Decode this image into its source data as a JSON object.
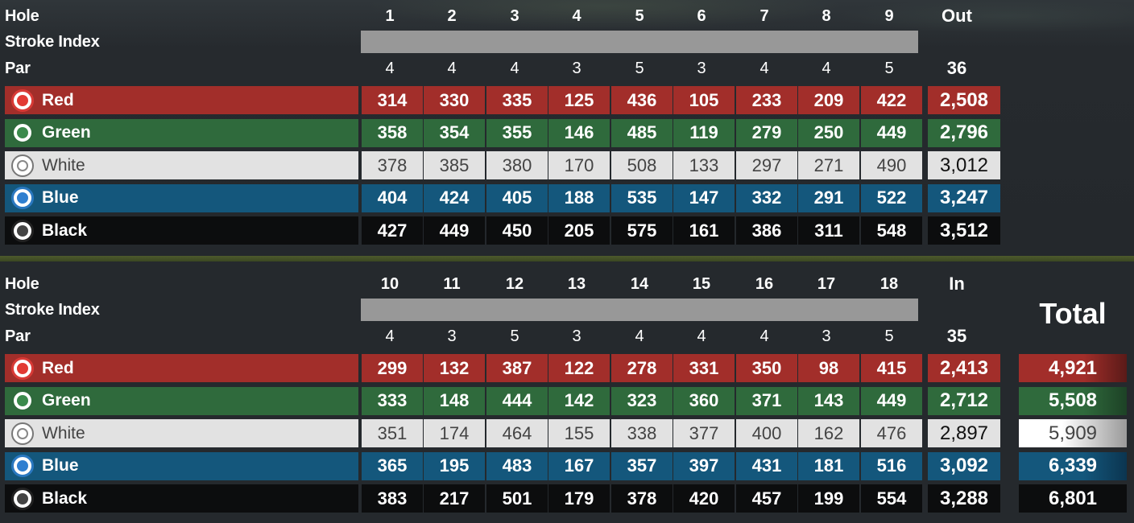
{
  "labels": {
    "hole": "Hole",
    "stroke_index": "Stroke Index",
    "par": "Par",
    "out": "Out",
    "in": "In",
    "total": "Total"
  },
  "front": {
    "holes": [
      "1",
      "2",
      "3",
      "4",
      "5",
      "6",
      "7",
      "8",
      "9"
    ],
    "par": [
      "4",
      "4",
      "4",
      "3",
      "5",
      "3",
      "4",
      "4",
      "5"
    ],
    "par_total": "36"
  },
  "back": {
    "holes": [
      "10",
      "11",
      "12",
      "13",
      "14",
      "15",
      "16",
      "17",
      "18"
    ],
    "par": [
      "4",
      "3",
      "5",
      "3",
      "4",
      "4",
      "4",
      "3",
      "5"
    ],
    "par_total": "35"
  },
  "tees": [
    {
      "key": "red",
      "name": "Red",
      "color": "#a22e2a",
      "front": [
        "314",
        "330",
        "335",
        "125",
        "436",
        "105",
        "233",
        "209",
        "422"
      ],
      "out": "2,508",
      "back": [
        "299",
        "132",
        "387",
        "122",
        "278",
        "331",
        "350",
        "98",
        "415"
      ],
      "in": "2,413",
      "total": "4,921"
    },
    {
      "key": "green",
      "name": "Green",
      "color": "#2f6a3c",
      "front": [
        "358",
        "354",
        "355",
        "146",
        "485",
        "119",
        "279",
        "250",
        "449"
      ],
      "out": "2,796",
      "back": [
        "333",
        "148",
        "444",
        "142",
        "323",
        "360",
        "371",
        "143",
        "449"
      ],
      "in": "2,712",
      "total": "5,508"
    },
    {
      "key": "white",
      "name": "White",
      "color": "#e2e2e2",
      "front": [
        "378",
        "385",
        "380",
        "170",
        "508",
        "133",
        "297",
        "271",
        "490"
      ],
      "out": "3,012",
      "back": [
        "351",
        "174",
        "464",
        "155",
        "338",
        "377",
        "400",
        "162",
        "476"
      ],
      "in": "2,897",
      "total": "5,909"
    },
    {
      "key": "blue",
      "name": "Blue",
      "color": "#14577c",
      "front": [
        "404",
        "424",
        "405",
        "188",
        "535",
        "147",
        "332",
        "291",
        "522"
      ],
      "out": "3,247",
      "back": [
        "365",
        "195",
        "483",
        "167",
        "357",
        "397",
        "431",
        "181",
        "516"
      ],
      "in": "3,092",
      "total": "6,339"
    },
    {
      "key": "black",
      "name": "Black",
      "color": "#0c0d0e",
      "front": [
        "427",
        "449",
        "450",
        "205",
        "575",
        "161",
        "386",
        "311",
        "548"
      ],
      "out": "3,512",
      "back": [
        "383",
        "217",
        "501",
        "179",
        "378",
        "420",
        "457",
        "199",
        "554"
      ],
      "in": "3,288",
      "total": "6,801"
    }
  ],
  "icons": {
    "tee_marker": "golf-ball-tee-icon"
  }
}
